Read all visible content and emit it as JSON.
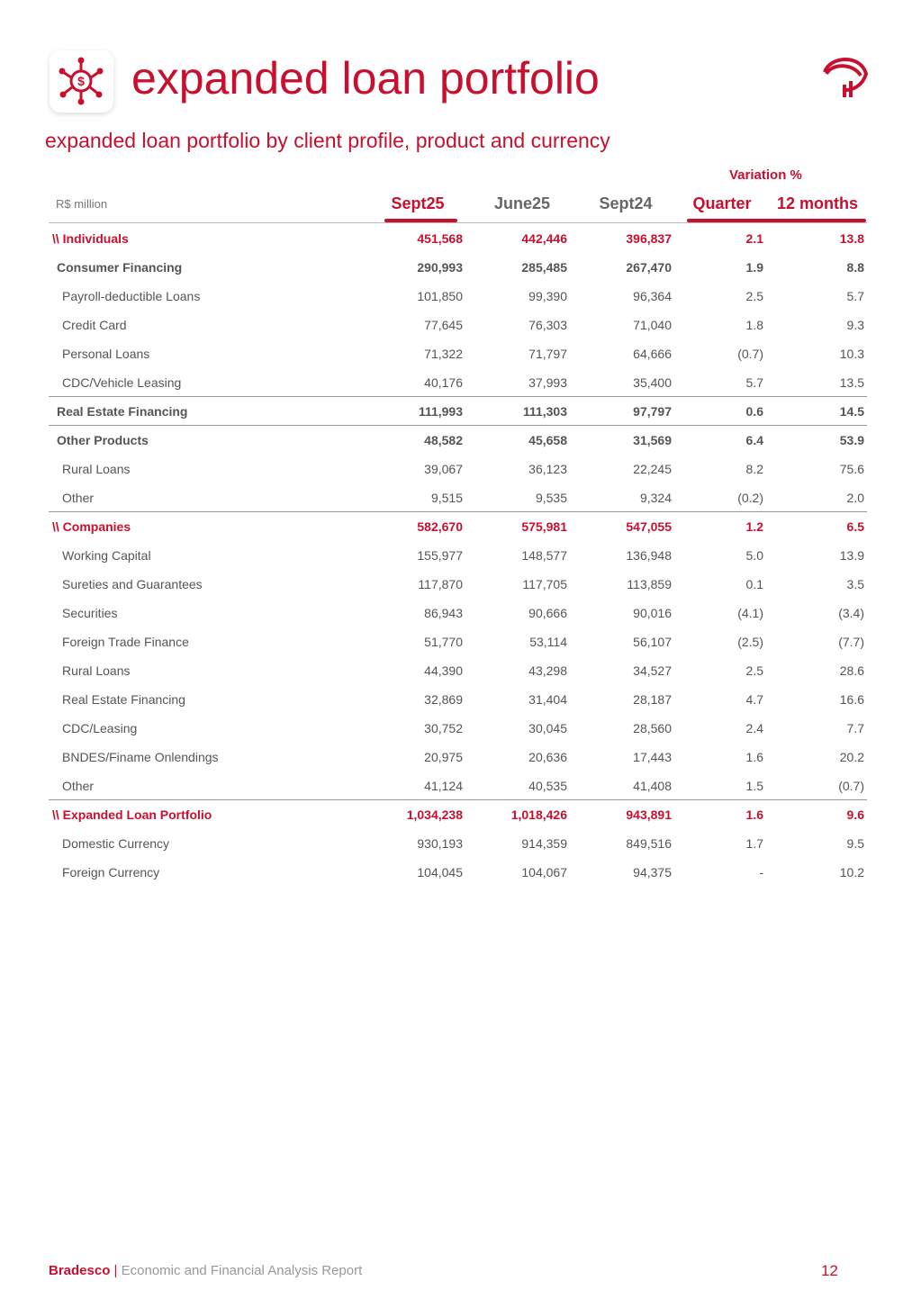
{
  "header": {
    "title": "expanded loan portfolio",
    "subtitle": "expanded loan portfolio by client profile, product and currency"
  },
  "table": {
    "unit": "R$ million",
    "variation": "Variation %",
    "columns": [
      "Sept25",
      "June25",
      "Sept24",
      "Quarter",
      "12 months"
    ],
    "sections": [
      {
        "label": "\\\\ Individuals",
        "values": [
          "451,568",
          "442,446",
          "396,837",
          "2.1",
          "13.8"
        ],
        "groups": [
          {
            "label": "Consumer Financing",
            "values": [
              "290,993",
              "285,485",
              "267,470",
              "1.9",
              "8.8"
            ],
            "items": [
              {
                "label": "Payroll-deductible Loans",
                "values": [
                  "101,850",
                  "99,390",
                  "96,364",
                  "2.5",
                  "5.7"
                ]
              },
              {
                "label": "Credit Card",
                "values": [
                  "77,645",
                  "76,303",
                  "71,040",
                  "1.8",
                  "9.3"
                ]
              },
              {
                "label": "Personal Loans",
                "values": [
                  "71,322",
                  "71,797",
                  "64,666",
                  "(0.7)",
                  "10.3"
                ]
              },
              {
                "label": "CDC/Vehicle Leasing",
                "values": [
                  "40,176",
                  "37,993",
                  "35,400",
                  "5.7",
                  "13.5"
                ]
              }
            ]
          },
          {
            "label": "Real Estate Financing",
            "values": [
              "111,993",
              "111,303",
              "97,797",
              "0.6",
              "14.5"
            ],
            "items": []
          },
          {
            "label": "Other Products",
            "values": [
              "48,582",
              "45,658",
              "31,569",
              "6.4",
              "53.9"
            ],
            "items": [
              {
                "label": "Rural Loans",
                "values": [
                  "39,067",
                  "36,123",
                  "22,245",
                  "8.2",
                  "75.6"
                ]
              },
              {
                "label": "Other",
                "values": [
                  "9,515",
                  "9,535",
                  "9,324",
                  "(0.2)",
                  "2.0"
                ]
              }
            ]
          }
        ]
      },
      {
        "label": "\\\\ Companies",
        "values": [
          "582,670",
          "575,981",
          "547,055",
          "1.2",
          "6.5"
        ],
        "items": [
          {
            "label": "Working Capital",
            "values": [
              "155,977",
              "148,577",
              "136,948",
              "5.0",
              "13.9"
            ]
          },
          {
            "label": "Sureties and Guarantees",
            "values": [
              "117,870",
              "117,705",
              "113,859",
              "0.1",
              "3.5"
            ]
          },
          {
            "label": "Securities",
            "values": [
              "86,943",
              "90,666",
              "90,016",
              "(4.1)",
              "(3.4)"
            ]
          },
          {
            "label": "Foreign Trade Finance",
            "values": [
              "51,770",
              "53,114",
              "56,107",
              "(2.5)",
              "(7.7)"
            ]
          },
          {
            "label": "Rural Loans",
            "values": [
              "44,390",
              "43,298",
              "34,527",
              "2.5",
              "28.6"
            ]
          },
          {
            "label": "Real Estate Financing",
            "values": [
              "32,869",
              "31,404",
              "28,187",
              "4.7",
              "16.6"
            ]
          },
          {
            "label": "CDC/Leasing",
            "values": [
              "30,752",
              "30,045",
              "28,560",
              "2.4",
              "7.7"
            ]
          },
          {
            "label": "BNDES/Finame Onlendings",
            "values": [
              "20,975",
              "20,636",
              "17,443",
              "1.6",
              "20.2"
            ]
          },
          {
            "label": "Other",
            "values": [
              "41,124",
              "40,535",
              "41,408",
              "1.5",
              "(0.7)"
            ]
          }
        ]
      },
      {
        "label": "\\\\ Expanded Loan Portfolio",
        "values": [
          "1,034,238",
          "1,018,426",
          "943,891",
          "1.6",
          "9.6"
        ],
        "items": [
          {
            "label": "Domestic Currency",
            "values": [
              "930,193",
              "914,359",
              "849,516",
              "1.7",
              "9.5"
            ]
          },
          {
            "label": "Foreign Currency",
            "values": [
              "104,045",
              "104,067",
              "94,375",
              "-",
              "10.2"
            ]
          }
        ]
      }
    ]
  },
  "footer": {
    "brand": "Bradesco",
    "separator": "|",
    "report": "Economic and Financial Analysis Report",
    "page": "12"
  }
}
